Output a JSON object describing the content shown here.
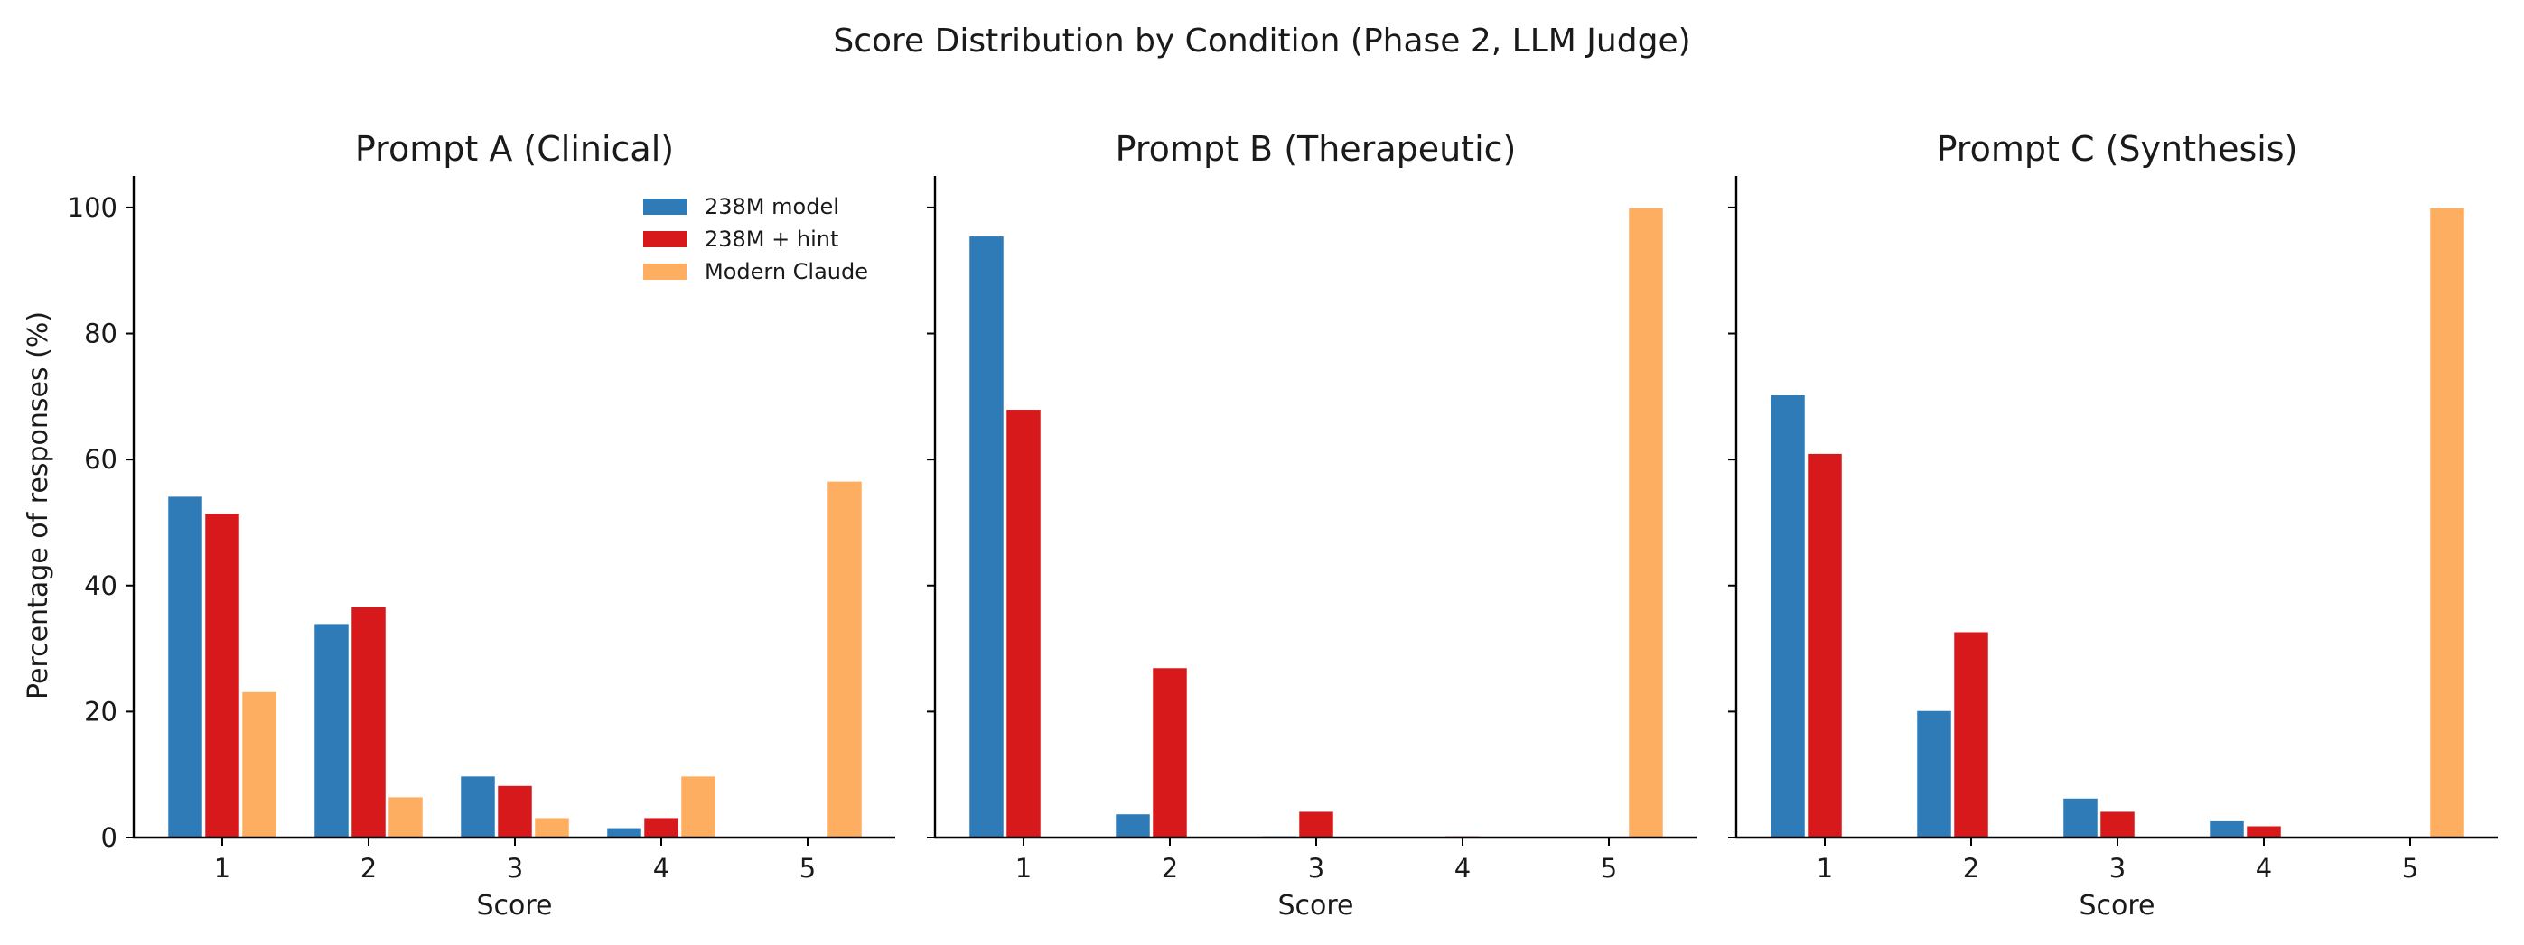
{
  "chart_data": {
    "type": "bar",
    "title": "Score Distribution by Condition (Phase 2, LLM Judge)",
    "ylabel": "Percentage of responses (%)",
    "xlabel": "Score",
    "ylim": [
      0,
      105
    ],
    "yticks": [
      0,
      20,
      40,
      60,
      80,
      100
    ],
    "categories": [
      "1",
      "2",
      "3",
      "4",
      "5"
    ],
    "legend": {
      "placement": "upper-right (first panel)",
      "entries": [
        "238M model",
        "238M + hint",
        "Modern Claude"
      ]
    },
    "colors": {
      "238M model": "#2e7bb8",
      "238M + hint": "#d7191c",
      "Modern Claude": "#fdae61"
    },
    "panels": [
      {
        "title": "Prompt A (Clinical)",
        "series": [
          {
            "name": "238M model",
            "values": [
              54.2,
              34.0,
              9.8,
              1.6,
              0.0
            ]
          },
          {
            "name": "238M + hint",
            "values": [
              51.5,
              36.7,
              8.3,
              3.2,
              0.0
            ]
          },
          {
            "name": "Modern Claude",
            "values": [
              23.2,
              6.5,
              3.2,
              9.8,
              56.6
            ]
          }
        ]
      },
      {
        "title": "Prompt B (Therapeutic)",
        "series": [
          {
            "name": "238M model",
            "values": [
              95.5,
              3.8,
              0.3,
              0.0,
              0.0
            ]
          },
          {
            "name": "238M + hint",
            "values": [
              68.0,
              27.0,
              4.2,
              0.3,
              0.0
            ]
          },
          {
            "name": "Modern Claude",
            "values": [
              0.0,
              0.0,
              0.0,
              0.0,
              100.0
            ]
          }
        ]
      },
      {
        "title": "Prompt C (Synthesis)",
        "series": [
          {
            "name": "238M model",
            "values": [
              70.3,
              20.2,
              6.3,
              2.7,
              0.0
            ]
          },
          {
            "name": "238M + hint",
            "values": [
              61.0,
              32.7,
              4.2,
              1.9,
              0.0
            ]
          },
          {
            "name": "Modern Claude",
            "values": [
              0.0,
              0.0,
              0.0,
              0.0,
              100.0
            ]
          }
        ]
      }
    ]
  }
}
